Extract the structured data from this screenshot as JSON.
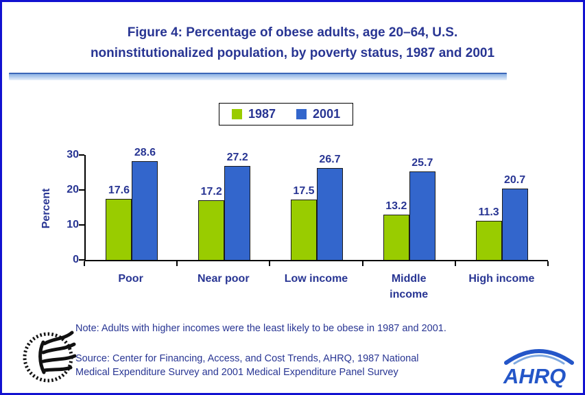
{
  "page": {
    "border_color": "#1212d0",
    "background": "#ffffff"
  },
  "title": {
    "line1": "Figure 4: Percentage of obese adults, age 20–64, U.S.",
    "line2": "noninstitutionalized population, by poverty status, 1987 and 2001"
  },
  "legend": {
    "items": [
      {
        "label": "1987",
        "color": "#99cc00"
      },
      {
        "label": "2001",
        "color": "#3366cc"
      }
    ]
  },
  "chart_data": {
    "type": "bar",
    "categories": [
      "Poor",
      "Near poor",
      "Low income",
      "Middle\nincome",
      "High income"
    ],
    "series": [
      {
        "name": "1987",
        "color": "#99cc00",
        "values": [
          17.6,
          17.2,
          17.5,
          13.2,
          11.3
        ]
      },
      {
        "name": "2001",
        "color": "#3366cc",
        "values": [
          28.6,
          27.2,
          26.7,
          25.7,
          20.7
        ]
      }
    ],
    "title": "Figure 4: Percentage of obese adults, age 20–64, U.S. noninstitutionalized population, by poverty status, 1987 and 2001",
    "xlabel": "",
    "ylabel": "Percent",
    "yticks": [
      0,
      10,
      20,
      30
    ],
    "ylim": [
      0,
      30
    ],
    "grid": false,
    "legend_position": "top-center",
    "value_labels": true
  },
  "note": "Note: Adults with higher incomes were the least likely to be obese in 1987 and 2001.",
  "source": {
    "line1": "Source: Center for Financing, Access, and Cost Trends, AHRQ, 1987 National",
    "line2": "Medical Expenditure Survey and 2001 Medical Expenditure Panel Survey"
  },
  "logos": {
    "hhs": "hhs-eagle-logo",
    "ahrq_text": "AHRQ"
  }
}
